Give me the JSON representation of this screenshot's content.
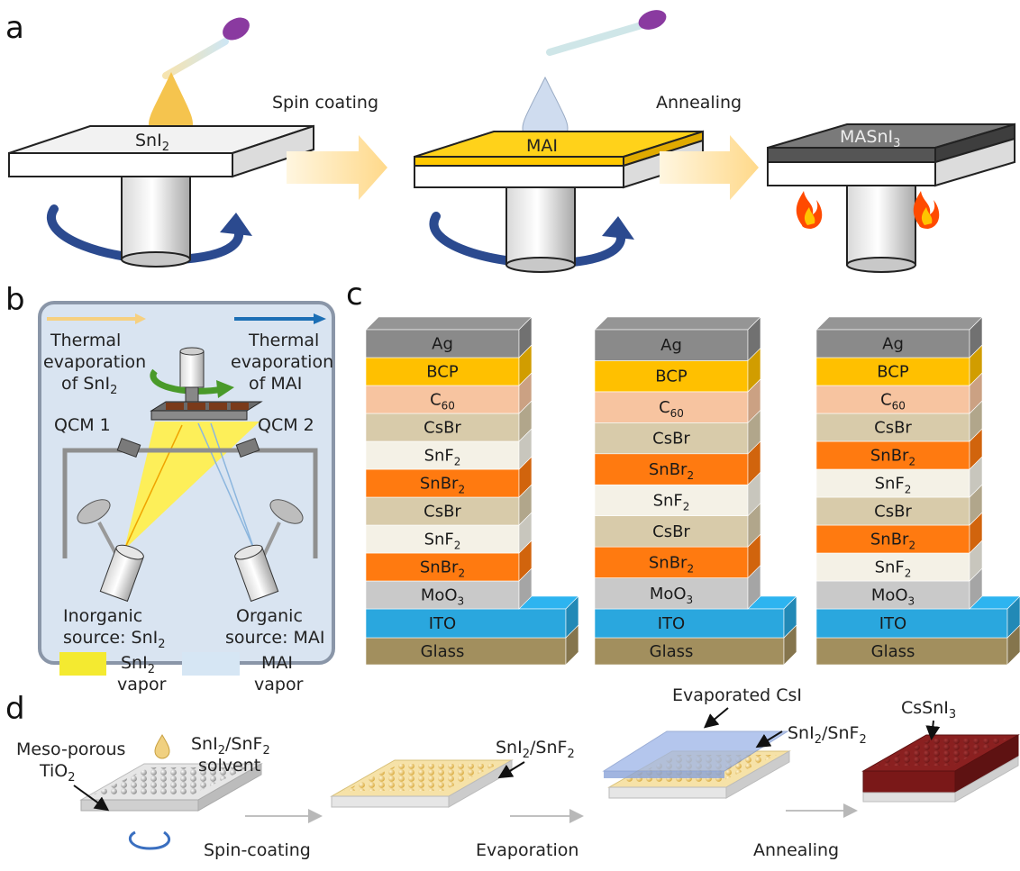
{
  "panels": {
    "a": "a",
    "b": "b",
    "c": "c",
    "d": "d"
  },
  "panel_a": {
    "substrate1": {
      "label": "SnI",
      "sub": "2"
    },
    "step1": "Spin coating",
    "substrate2": {
      "label": "MAI"
    },
    "step2": "Annealing",
    "substrate3": {
      "label": "MASnI",
      "sub": "3"
    },
    "colors": {
      "yellow_layer": "#ffd21a",
      "dark_layer": "#6e6e6e",
      "arrow": "#ffe2a0",
      "rotation": "#2b4a8f"
    }
  },
  "panel_b": {
    "left_source": {
      "line1": "Thermal",
      "line2": "evaporation",
      "line3_main": "of SnI",
      "line3_sub": "2"
    },
    "right_source": {
      "line1": "Thermal",
      "line2": "evaporation",
      "line3": "of MAI"
    },
    "qcm1": "QCM 1",
    "qcm2": "QCM 2",
    "inorganic": {
      "line1": "Inorganic",
      "line2_main": "source: SnI",
      "line2_sub": "2"
    },
    "organic": {
      "line1": "Organic",
      "line2": "source: MAI"
    },
    "legend_sni2": {
      "main": "SnI",
      "sub": "2",
      "line2": "vapor"
    },
    "legend_mai": {
      "line1": "MAI",
      "line2": "vapor"
    }
  },
  "panel_c": {
    "stack1": [
      {
        "name": "Ag"
      },
      {
        "name": "BCP"
      },
      {
        "name": "C",
        "sub": "60"
      },
      {
        "name": "CsBr"
      },
      {
        "name": "SnF",
        "sub": "2"
      },
      {
        "name": "SnBr",
        "sub": "2"
      },
      {
        "name": "CsBr"
      },
      {
        "name": "SnF",
        "sub": "2"
      },
      {
        "name": "SnBr",
        "sub": "2"
      },
      {
        "name": "MoO",
        "sub": "3"
      }
    ],
    "stack2": [
      {
        "name": "Ag"
      },
      {
        "name": "BCP"
      },
      {
        "name": "C",
        "sub": "60"
      },
      {
        "name": "CsBr"
      },
      {
        "name": "SnBr",
        "sub": "2"
      },
      {
        "name": "SnF",
        "sub": "2"
      },
      {
        "name": "CsBr"
      },
      {
        "name": "SnBr",
        "sub": "2"
      },
      {
        "name": "MoO",
        "sub": "3"
      }
    ],
    "stack3": [
      {
        "name": "Ag"
      },
      {
        "name": "BCP"
      },
      {
        "name": "C",
        "sub": "60"
      },
      {
        "name": "CsBr"
      },
      {
        "name": "SnBr",
        "sub": "2"
      },
      {
        "name": "SnF",
        "sub": "2"
      },
      {
        "name": "CsBr"
      },
      {
        "name": "SnBr",
        "sub": "2"
      },
      {
        "name": "SnF",
        "sub": "2"
      },
      {
        "name": "MoO",
        "sub": "3"
      }
    ],
    "ito": "ITO",
    "glass": "Glass",
    "layer_colors": {
      "Ag": "#8a8a8a",
      "BCP": "#ffc000",
      "C": "#f7c4a0",
      "CsBr": "#d8cbaa",
      "SnF": "#f4f1e6",
      "SnBr": "#ff7a10",
      "MoO": "#c9c9c9",
      "ITO": "#2aa7de",
      "Glass": "#a28f5e"
    }
  },
  "panel_d": {
    "mesoporous": {
      "line1": "Meso-porous",
      "line2_main": "TiO",
      "line2_sub": "2"
    },
    "solvent": {
      "line1_main": "SnI",
      "line1_sub1": "2",
      "line1_mid": "/SnF",
      "line1_sub2": "2",
      "line2": "solvent"
    },
    "film2": {
      "main": "SnI",
      "sub1": "2",
      "mid": "/SnF",
      "sub2": "2"
    },
    "csi": "Evaporated CsI",
    "film3": {
      "main": "SnI",
      "sub1": "2",
      "mid": "/SnF",
      "sub2": "2"
    },
    "product": {
      "main": "CsSnI",
      "sub": "3"
    },
    "step1": "Spin-coating",
    "step2": "Evaporation",
    "step3": "Annealing"
  }
}
